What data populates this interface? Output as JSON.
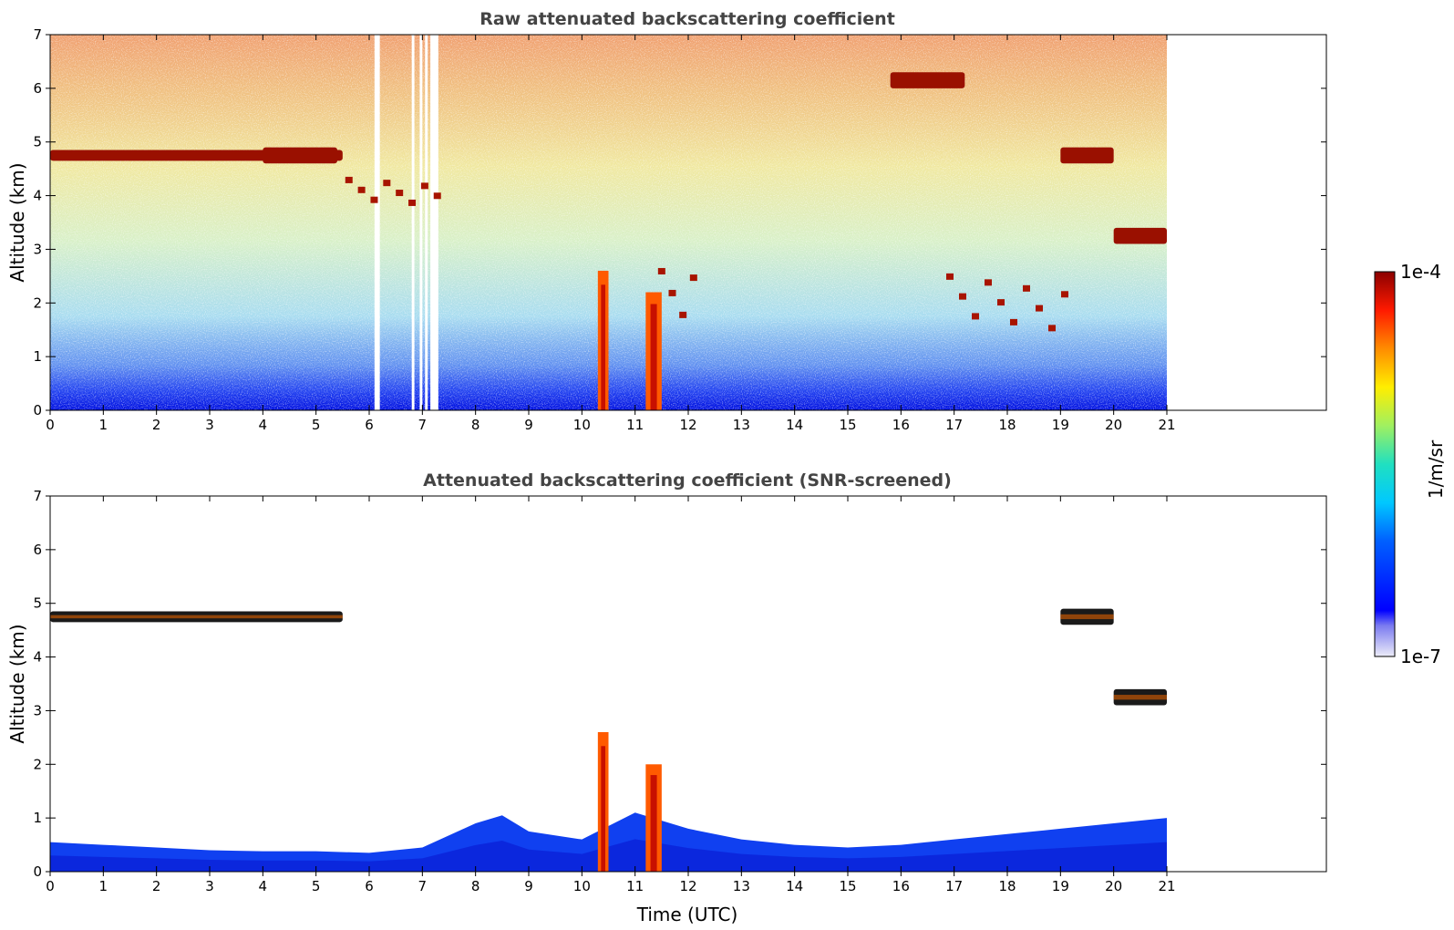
{
  "chart_data": [
    {
      "type": "heatmap",
      "title": "Raw attenuated backscattering coefficient",
      "xlabel": "",
      "ylabel": "Altitude (km)",
      "xlim": [
        0,
        24
      ],
      "ylim": [
        0,
        7
      ],
      "x_ticks": [
        "0",
        "1",
        "2",
        "3",
        "4",
        "5",
        "6",
        "7",
        "8",
        "9",
        "10",
        "11",
        "12",
        "13",
        "14",
        "15",
        "16",
        "17",
        "18",
        "19",
        "20",
        "21"
      ],
      "y_ticks": [
        "0",
        "1",
        "2",
        "3",
        "4",
        "5",
        "6",
        "7"
      ],
      "data_extent_x": [
        0,
        21
      ],
      "gaps_x": [
        [
          6.1,
          6.2
        ],
        [
          6.8,
          6.85
        ],
        [
          6.95,
          7.0
        ],
        [
          7.05,
          7.1
        ],
        [
          7.15,
          7.3
        ]
      ],
      "features": [
        {
          "kind": "cloud-layer",
          "x": [
            0,
            5.5
          ],
          "y": [
            4.65,
            4.85
          ]
        },
        {
          "kind": "cloud-layer",
          "x": [
            4.0,
            5.4
          ],
          "y": [
            4.6,
            4.9
          ]
        },
        {
          "kind": "cloud-patches",
          "x": [
            5.5,
            7.4
          ],
          "y": [
            3.8,
            4.3
          ]
        },
        {
          "kind": "convective-column",
          "x": [
            10.3,
            10.5
          ],
          "y": [
            0,
            2.6
          ]
        },
        {
          "kind": "convective-column",
          "x": [
            11.2,
            11.5
          ],
          "y": [
            0,
            2.2
          ]
        },
        {
          "kind": "cloud-patches",
          "x": [
            11.4,
            12.2
          ],
          "y": [
            1.5,
            2.6
          ]
        },
        {
          "kind": "cloud-layer",
          "x": [
            15.8,
            17.2
          ],
          "y": [
            6.0,
            6.3
          ]
        },
        {
          "kind": "cloud-layer",
          "x": [
            19.0,
            20.0
          ],
          "y": [
            4.6,
            4.9
          ]
        },
        {
          "kind": "cloud-layer",
          "x": [
            20.0,
            21.0
          ],
          "y": [
            3.1,
            3.4
          ]
        },
        {
          "kind": "cloud-patches",
          "x": [
            16.8,
            19.2
          ],
          "y": [
            1.5,
            2.5
          ]
        }
      ]
    },
    {
      "type": "heatmap",
      "title": "Attenuated backscattering coefficient (SNR-screened)",
      "xlabel": "Time (UTC)",
      "ylabel": "Altitude (km)",
      "xlim": [
        0,
        24
      ],
      "ylim": [
        0,
        7
      ],
      "x_ticks": [
        "0",
        "1",
        "2",
        "3",
        "4",
        "5",
        "6",
        "7",
        "8",
        "9",
        "10",
        "11",
        "12",
        "13",
        "14",
        "15",
        "16",
        "17",
        "18",
        "19",
        "20",
        "21"
      ],
      "y_ticks": [
        "0",
        "1",
        "2",
        "3",
        "4",
        "5",
        "6",
        "7"
      ],
      "data_extent_x": [
        0,
        21
      ],
      "boundary_layer_top_km": [
        [
          0,
          0.55
        ],
        [
          1,
          0.5
        ],
        [
          2,
          0.45
        ],
        [
          3,
          0.4
        ],
        [
          4,
          0.38
        ],
        [
          5,
          0.38
        ],
        [
          6,
          0.35
        ],
        [
          7,
          0.45
        ],
        [
          8,
          0.9
        ],
        [
          8.5,
          1.05
        ],
        [
          9,
          0.75
        ],
        [
          10,
          0.6
        ],
        [
          11,
          1.1
        ],
        [
          12,
          0.8
        ],
        [
          13,
          0.6
        ],
        [
          14,
          0.5
        ],
        [
          15,
          0.45
        ],
        [
          16,
          0.5
        ],
        [
          17,
          0.6
        ],
        [
          18,
          0.7
        ],
        [
          19,
          0.8
        ],
        [
          20,
          0.9
        ],
        [
          21,
          1.0
        ]
      ],
      "features": [
        {
          "kind": "cloud-layer",
          "x": [
            0,
            5.5
          ],
          "y": [
            4.65,
            4.85
          ]
        },
        {
          "kind": "convective-column",
          "x": [
            10.3,
            10.5
          ],
          "y": [
            0,
            2.6
          ]
        },
        {
          "kind": "convective-column",
          "x": [
            11.2,
            11.5
          ],
          "y": [
            0,
            2.0
          ]
        },
        {
          "kind": "cloud-layer",
          "x": [
            19.0,
            20.0
          ],
          "y": [
            4.6,
            4.9
          ]
        },
        {
          "kind": "cloud-layer",
          "x": [
            20.0,
            21.0
          ],
          "y": [
            3.1,
            3.4
          ]
        }
      ]
    }
  ],
  "colorbar": {
    "label": "1/m/sr",
    "max_label": "1e-4",
    "min_label": "1e-7",
    "scale": "log",
    "range": [
      1e-07,
      0.0001
    ],
    "colormap": "jet-like"
  }
}
